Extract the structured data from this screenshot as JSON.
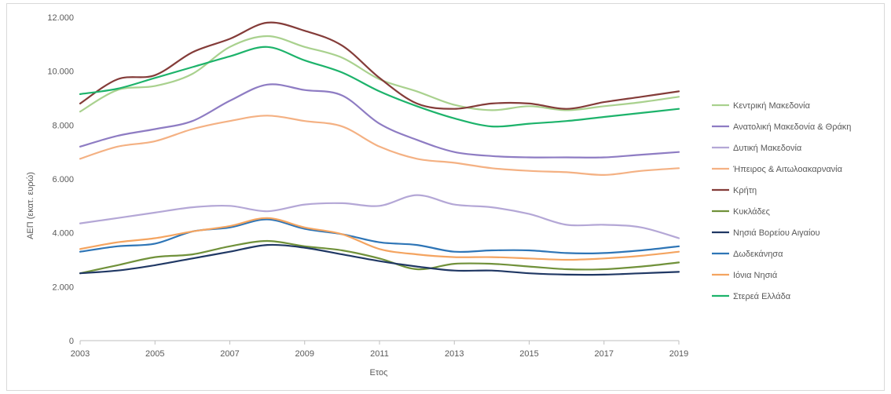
{
  "chart_data": {
    "type": "line",
    "title": "",
    "xlabel": "Ετος",
    "ylabel": "ΑΕΠ (εκατ. ευρώ)",
    "x": [
      2003,
      2004,
      2005,
      2006,
      2007,
      2008,
      2009,
      2010,
      2011,
      2012,
      2013,
      2014,
      2015,
      2016,
      2017,
      2018,
      2019
    ],
    "x_ticks": [
      "2003",
      "2005",
      "2007",
      "2009",
      "2011",
      "2013",
      "2015",
      "2017",
      "2019"
    ],
    "y_ticks": [
      "0",
      "2.000",
      "4.000",
      "6.000",
      "8.000",
      "10.000",
      "12.000"
    ],
    "ylim": [
      0,
      12000
    ],
    "grid": false,
    "legend_position": "right",
    "series": [
      {
        "name": "Κεντρική Μακεδονία",
        "color": "#a9d18e",
        "values": [
          8500,
          9300,
          9450,
          9900,
          10900,
          11300,
          10900,
          10500,
          9700,
          9250,
          8750,
          8550,
          8700,
          8550,
          8700,
          8850,
          9050
        ]
      },
      {
        "name": "Ανατολική Μακεδονία & Θράκη",
        "color": "#8e7cc3",
        "values": [
          7200,
          7600,
          7850,
          8150,
          8900,
          9500,
          9300,
          9100,
          8050,
          7450,
          7000,
          6850,
          6800,
          6800,
          6800,
          6900,
          7000
        ]
      },
      {
        "name": "Δυτική Μακεδονία",
        "color": "#b4a7d6",
        "values": [
          4350,
          4550,
          4750,
          4950,
          5000,
          4800,
          5050,
          5100,
          5000,
          5400,
          5050,
          4950,
          4700,
          4300,
          4300,
          4200,
          3800
        ]
      },
      {
        "name": "Ήπειρος & Αιτωλοακαρνανία",
        "color": "#f4b183",
        "values": [
          6750,
          7200,
          7400,
          7850,
          8150,
          8350,
          8150,
          7950,
          7200,
          6750,
          6600,
          6400,
          6300,
          6250,
          6150,
          6300,
          6400
        ]
      },
      {
        "name": "Κρήτη",
        "color": "#843c39",
        "values": [
          8800,
          9700,
          9850,
          10700,
          11200,
          11800,
          11500,
          10950,
          9750,
          8800,
          8600,
          8800,
          8800,
          8600,
          8850,
          9050,
          9250
        ]
      },
      {
        "name": "Κυκλάδες",
        "color": "#70913a",
        "values": [
          2500,
          2800,
          3100,
          3200,
          3500,
          3700,
          3500,
          3350,
          3050,
          2650,
          2850,
          2850,
          2750,
          2650,
          2650,
          2750,
          2900
        ]
      },
      {
        "name": "Νησιά Βορείου Αιγαίου",
        "color": "#203864",
        "values": [
          2500,
          2600,
          2800,
          3050,
          3300,
          3550,
          3450,
          3200,
          2950,
          2750,
          2600,
          2600,
          2500,
          2450,
          2450,
          2500,
          2550
        ]
      },
      {
        "name": "Δωδεκάνησα",
        "color": "#2e75b6",
        "values": [
          3300,
          3500,
          3600,
          4050,
          4200,
          4500,
          4150,
          3950,
          3650,
          3550,
          3300,
          3350,
          3350,
          3250,
          3250,
          3350,
          3500
        ]
      },
      {
        "name": "Ιόνια Νησιά",
        "color": "#f4a460",
        "values": [
          3400,
          3650,
          3800,
          4050,
          4250,
          4550,
          4200,
          3950,
          3400,
          3200,
          3100,
          3100,
          3050,
          3000,
          3050,
          3150,
          3300
        ]
      },
      {
        "name": "Στερεά Ελλάδα",
        "color": "#1db36b",
        "values": [
          9150,
          9350,
          9750,
          10150,
          10550,
          10900,
          10400,
          9950,
          9250,
          8700,
          8250,
          7950,
          8050,
          8150,
          8300,
          8450,
          8600
        ]
      }
    ]
  }
}
